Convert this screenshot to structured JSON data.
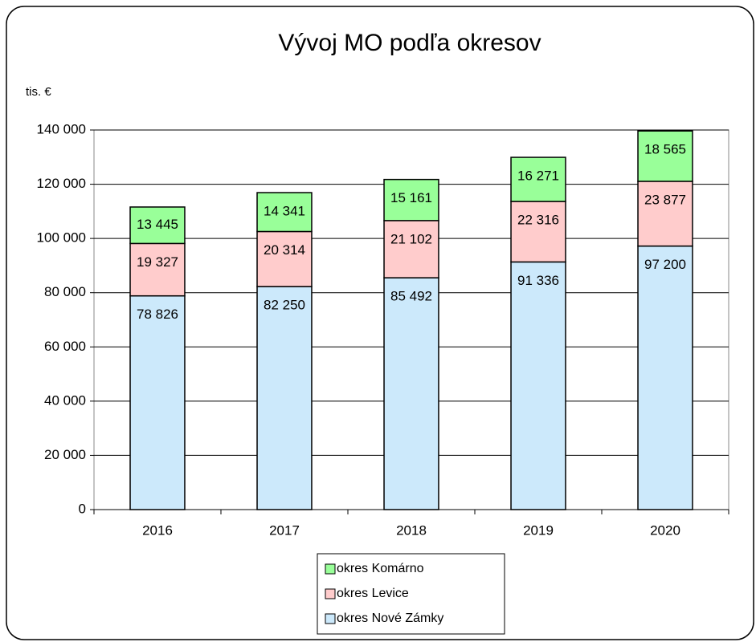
{
  "chart_data": {
    "type": "bar",
    "stacked": true,
    "title": "Vývoj MO podľa okresov",
    "ylabel": "tis. €",
    "categories": [
      "2016",
      "2017",
      "2018",
      "2019",
      "2020"
    ],
    "series": [
      {
        "name": "okres Nové Zámky",
        "color": "#cce9fb",
        "values": [
          78826,
          82250,
          85492,
          91336,
          97200
        ],
        "value_labels": [
          "78 826",
          "82 250",
          "85 492",
          "91 336",
          "97 200"
        ]
      },
      {
        "name": "okres Levice",
        "color": "#ffcccc",
        "values": [
          19327,
          20314,
          21102,
          22316,
          23877
        ],
        "value_labels": [
          "19 327",
          "20 314",
          "21 102",
          "22 316",
          "23 877"
        ]
      },
      {
        "name": "okres Komárno",
        "color": "#99ff99",
        "values": [
          13445,
          14341,
          15161,
          16271,
          18565
        ],
        "value_labels": [
          "13 445",
          "14 341",
          "15 161",
          "16 271",
          "18 565"
        ]
      }
    ],
    "ylim": [
      0,
      140000
    ],
    "yticks": [
      0,
      {
        "value": 20000,
        "label": "20 000"
      },
      {
        "value": 40000,
        "label": "40 000"
      },
      {
        "value": 60000,
        "label": "60 000"
      },
      {
        "value": 80000,
        "label": "80 000"
      },
      {
        "value": 100000,
        "label": "100 000"
      },
      {
        "value": 120000,
        "label": "120 000"
      },
      {
        "value": 140000,
        "label": "140 000"
      }
    ],
    "grid": true,
    "legend": "bottom"
  }
}
